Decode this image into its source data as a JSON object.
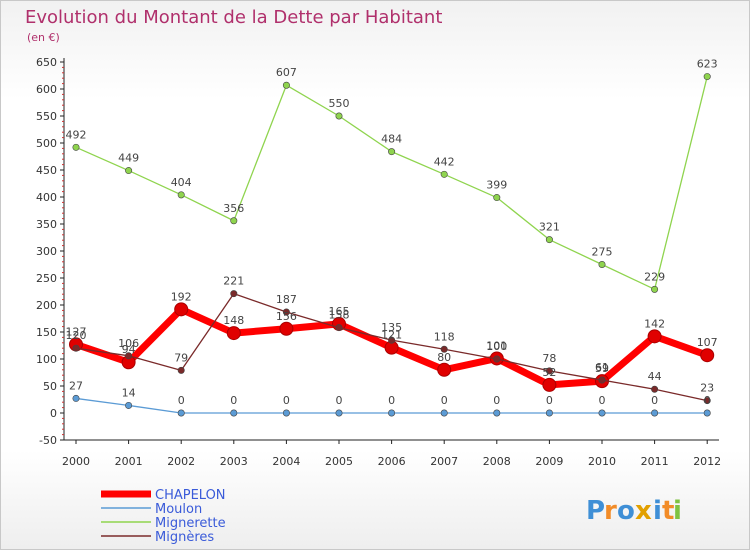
{
  "chart_data": {
    "type": "line",
    "title": "Evolution du Montant de la Dette par Habitant",
    "subtitle": "(en €)",
    "x": [
      "2000",
      "2001",
      "2002",
      "2003",
      "2004",
      "2005",
      "2006",
      "2007",
      "2008",
      "2009",
      "2010",
      "2011",
      "2012"
    ],
    "ylim": [
      -50,
      650
    ],
    "yticks": [
      -50,
      0,
      50,
      100,
      150,
      200,
      250,
      300,
      350,
      400,
      450,
      500,
      550,
      600,
      650
    ],
    "grid": false,
    "legend_position": "bottom-left",
    "series": [
      {
        "name": "CHAPELON",
        "color": "#ff0000",
        "values": [
          127,
          94,
          192,
          148,
          156,
          165,
          121,
          80,
          101,
          52,
          59,
          142,
          107
        ]
      },
      {
        "name": "Moulon",
        "color": "#5b9bd5",
        "values": [
          27,
          14,
          0,
          0,
          0,
          0,
          0,
          0,
          0,
          0,
          0,
          0,
          0
        ]
      },
      {
        "name": "Mignerette",
        "color": "#8fd44e",
        "values": [
          492,
          449,
          404,
          356,
          607,
          550,
          484,
          442,
          399,
          321,
          275,
          229,
          623
        ]
      },
      {
        "name": "Mignères",
        "color": "#7a2a2a",
        "values": [
          120,
          106,
          79,
          221,
          187,
          158,
          135,
          118,
          100,
          78,
          61,
          44,
          23
        ]
      }
    ]
  },
  "logo": {
    "text": "Proxiti",
    "colors": [
      "#3f8fd6",
      "#f28c28",
      "#3f8fd6",
      "#e2a000",
      "#3f8fd6",
      "#f28c28",
      "#7fc241"
    ]
  }
}
